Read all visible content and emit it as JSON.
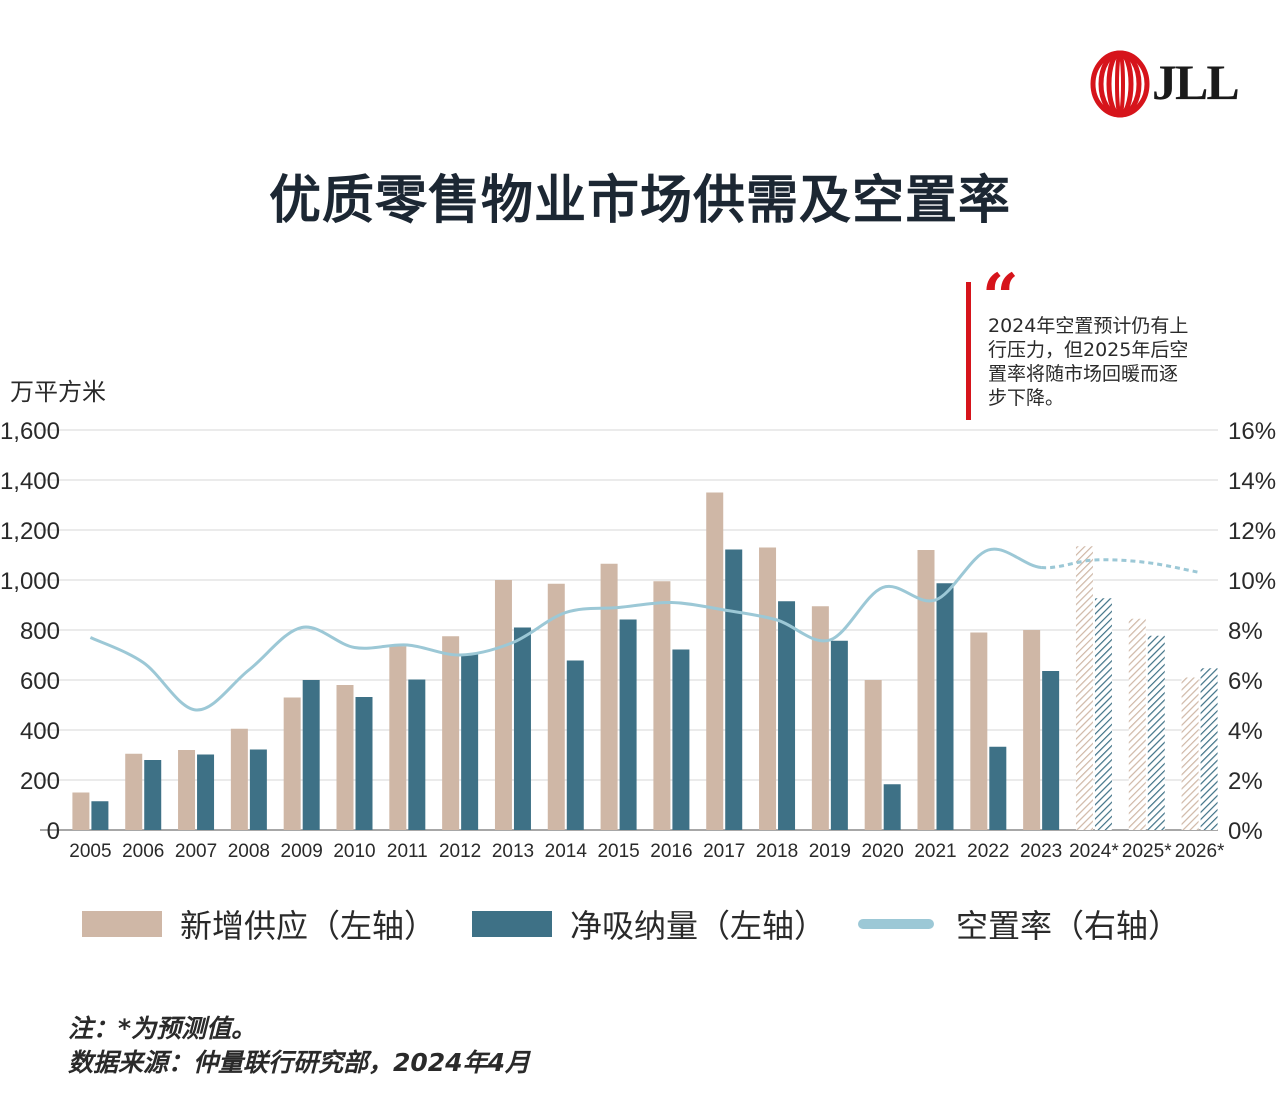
{
  "brand": {
    "logo_text": "JLL",
    "accent": "#d6141b"
  },
  "title": "优质零售物业市场供需及空置率",
  "quote": "2024年空置预计仍有上行压力，但2025年后空置率将随市场回暖而逐步下降。",
  "quote_lines": [
    "2024年空置预计仍有上",
    "行压力，但2025年后空",
    "置率将随市场回暖而逐",
    "步下降。"
  ],
  "unit_left": "万平方米",
  "legend": [
    {
      "label": "新增供应（左轴）",
      "color": "#cfb7a6"
    },
    {
      "label": "净吸纳量（左轴）",
      "color": "#3e7186"
    },
    {
      "label": "空置率（右轴）",
      "color": "#9cc8d6"
    }
  ],
  "notes": [
    "注：*为预测值。",
    "数据来源：仲量联行研究部，2024年4月"
  ],
  "chart_data": {
    "type": "bar",
    "categories": [
      "2005",
      "2006",
      "2007",
      "2008",
      "2009",
      "2010",
      "2011",
      "2012",
      "2013",
      "2014",
      "2015",
      "2016",
      "2017",
      "2018",
      "2019",
      "2020",
      "2021",
      "2022",
      "2023",
      "2024*",
      "2025*",
      "2026*"
    ],
    "forecast_from_index": 19,
    "series": [
      {
        "name": "新增供应（左轴）",
        "axis": "left",
        "color": "#cfb7a6",
        "values": [
          150,
          305,
          320,
          405,
          530,
          580,
          735,
          775,
          1000,
          985,
          1065,
          995,
          1350,
          1130,
          895,
          600,
          1120,
          790,
          800,
          1135,
          845,
          610
        ]
      },
      {
        "name": "净吸纳量（左轴）",
        "axis": "left",
        "color": "#3e7186",
        "values": [
          115,
          280,
          302,
          322,
          600,
          532,
          602,
          702,
          810,
          678,
          842,
          722,
          1122,
          915,
          757,
          183,
          987,
          333,
          636,
          927,
          777,
          647
        ]
      },
      {
        "name": "空置率（右轴）",
        "axis": "right",
        "type": "line",
        "color": "#9cc8d6",
        "values": [
          7.7,
          6.7,
          4.8,
          6.4,
          8.1,
          7.3,
          7.4,
          7.0,
          7.5,
          8.7,
          8.9,
          9.1,
          8.8,
          8.4,
          7.6,
          9.7,
          9.2,
          11.2,
          10.5,
          10.8,
          10.7,
          10.3
        ]
      }
    ],
    "left_axis": {
      "ylim": [
        0,
        1600
      ],
      "ticks": [
        "0",
        "200",
        "400",
        "600",
        "800",
        "1,000",
        "1,200",
        "1,400",
        "1,600"
      ]
    },
    "right_axis": {
      "ylim": [
        0,
        16
      ],
      "ticks": [
        "0%",
        "2%",
        "4%",
        "6%",
        "8%",
        "10%",
        "12%",
        "14%",
        "16%"
      ]
    },
    "grid": true
  }
}
